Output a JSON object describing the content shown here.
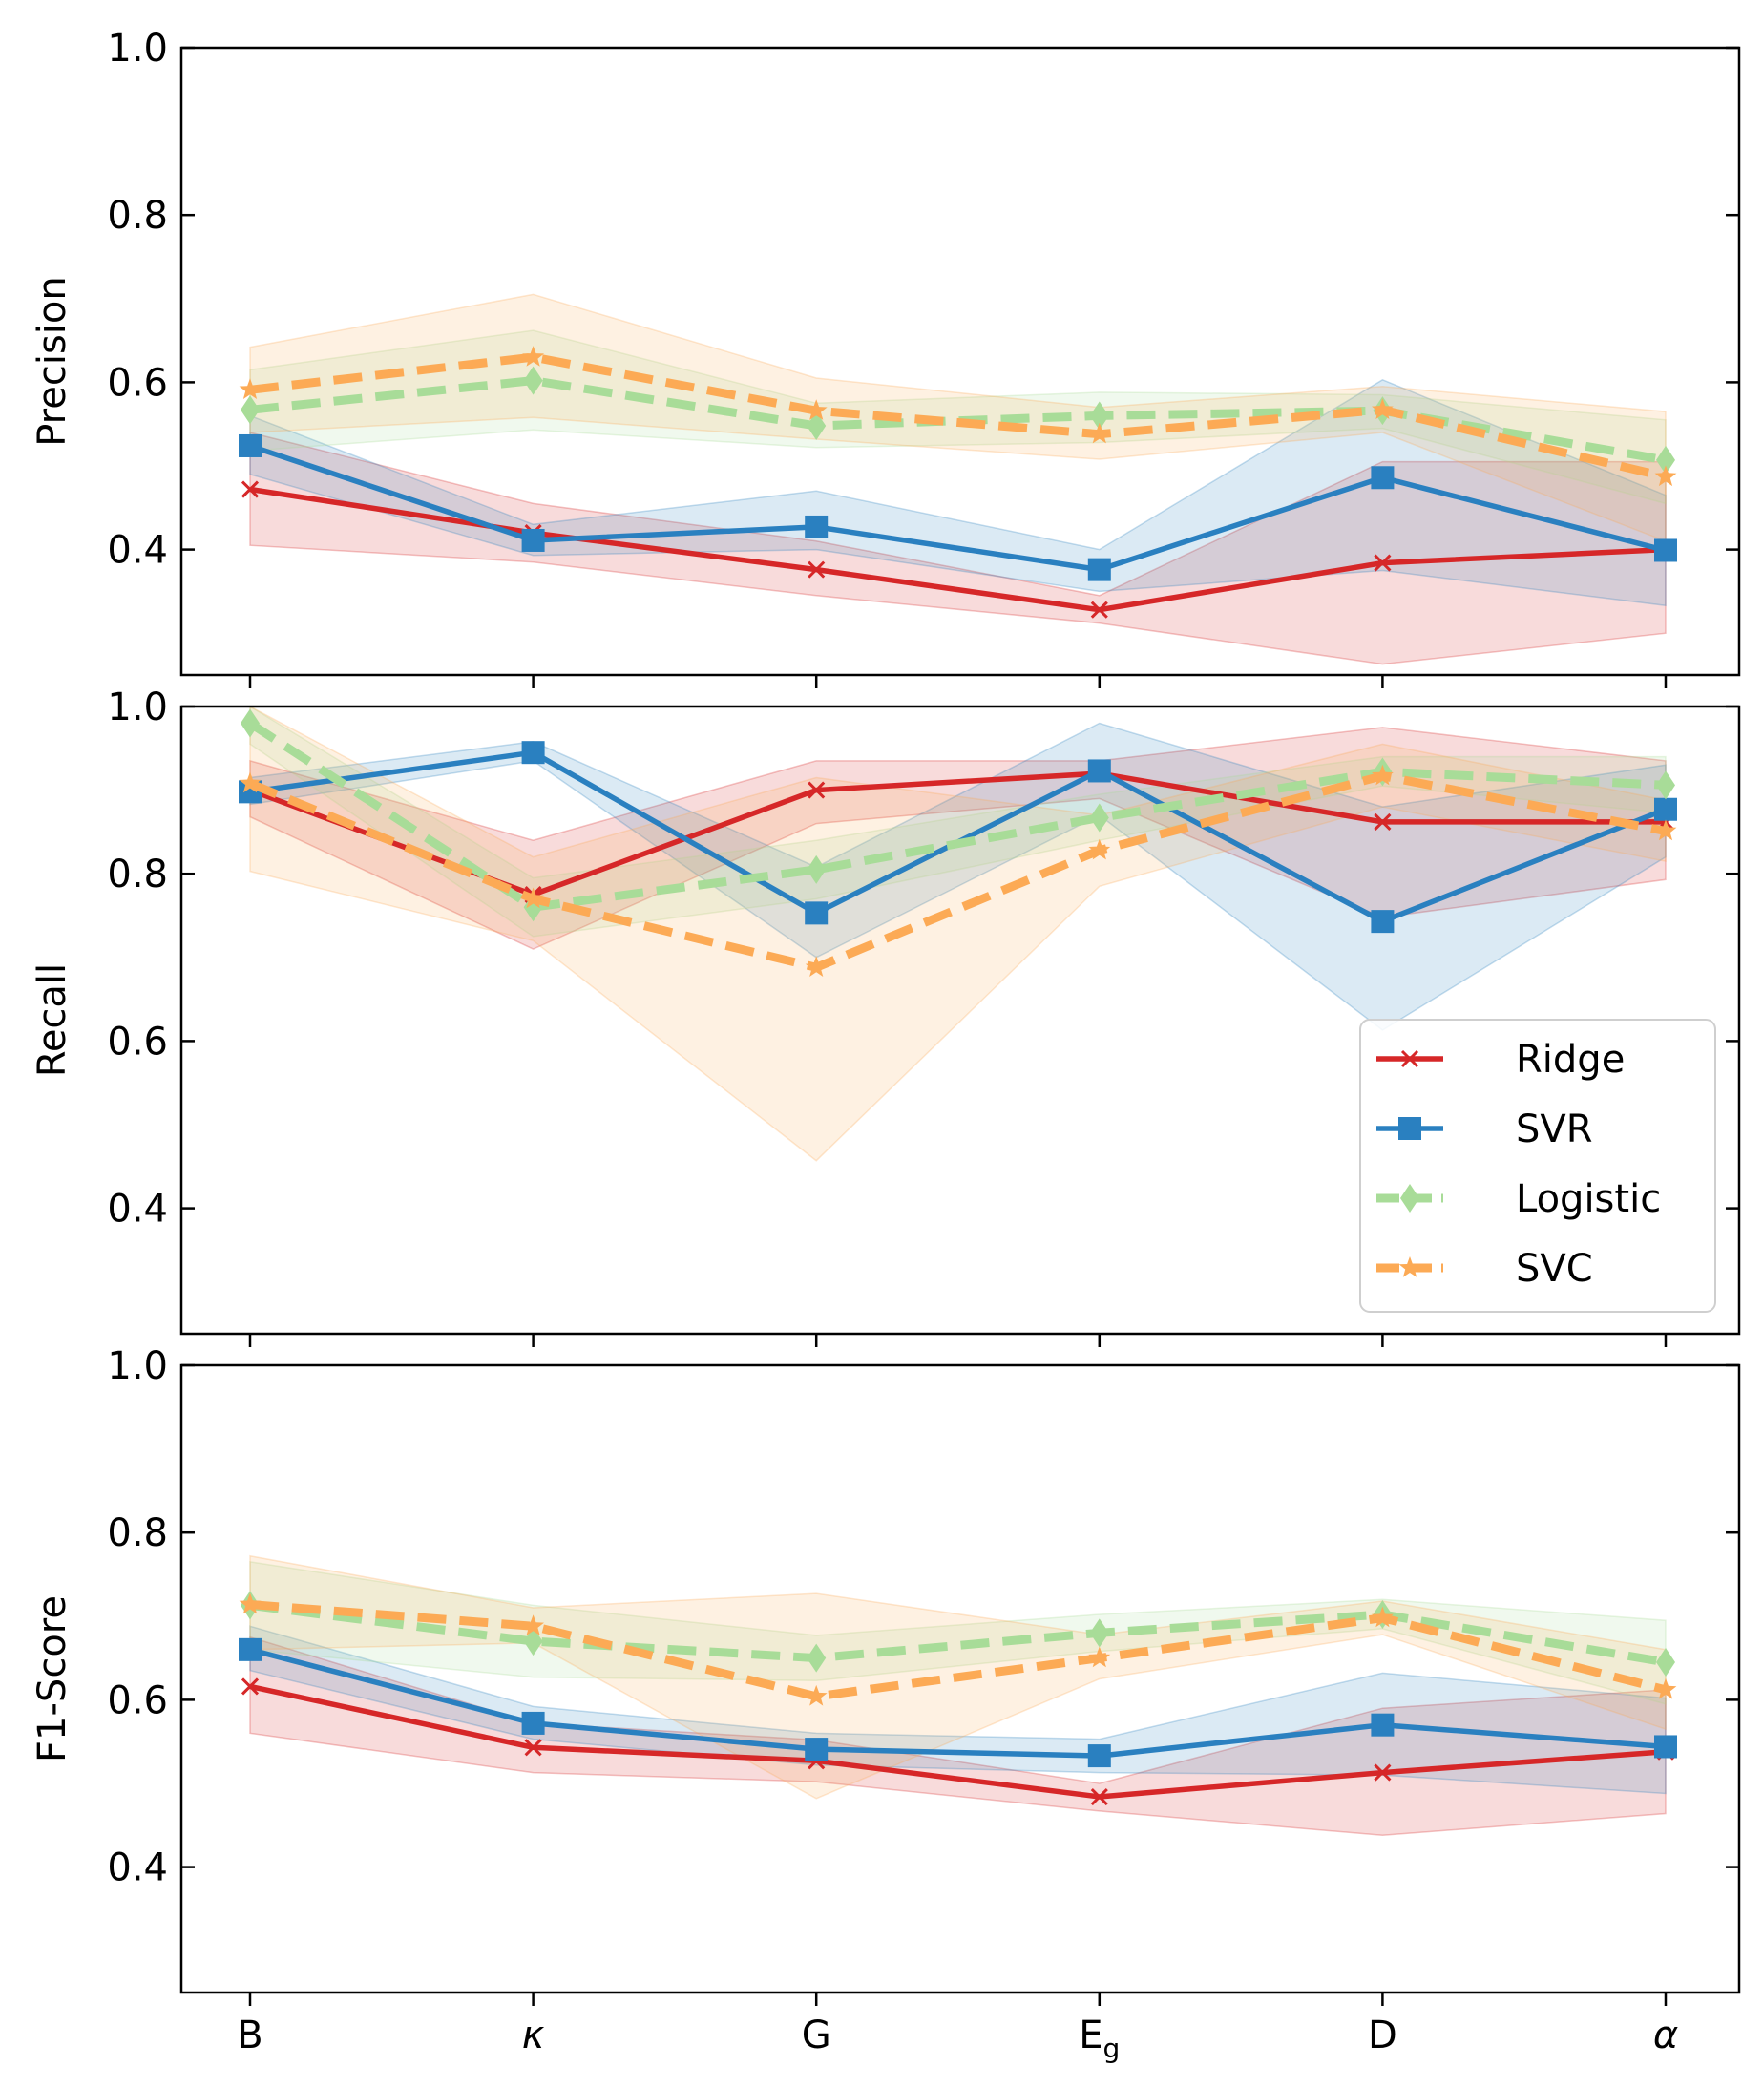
{
  "chart_data": {
    "type": "line",
    "x": [
      "B",
      "κ",
      "G",
      "E_g",
      "D",
      "α"
    ],
    "ylim": [
      0.25,
      1.0
    ],
    "yticks": [
      0.4,
      0.6,
      0.8,
      1.0
    ],
    "grid": false,
    "legend": {
      "panel": 1,
      "placement": "lower-right"
    },
    "series_styles": {
      "Ridge": {
        "color": "#d62728",
        "marker": "x",
        "dashed": false
      },
      "SVR": {
        "color": "#2a80c0",
        "marker": "square",
        "dashed": false
      },
      "Logistic": {
        "color": "#a8dc98",
        "marker": "diamond",
        "dashed": true
      },
      "SVC": {
        "color": "#fcaa55",
        "marker": "star",
        "dashed": true
      }
    },
    "panels": [
      {
        "ylabel": "Precision",
        "series": [
          {
            "name": "Ridge",
            "values": [
              0.472,
              0.42,
              0.376,
              0.328,
              0.384,
              0.4
            ],
            "lower": [
              0.405,
              0.385,
              0.345,
              0.312,
              0.263,
              0.3
            ],
            "upper": [
              0.54,
              0.455,
              0.41,
              0.345,
              0.505,
              0.505
            ]
          },
          {
            "name": "SVR",
            "values": [
              0.524,
              0.411,
              0.427,
              0.376,
              0.486,
              0.399
            ],
            "lower": [
              0.49,
              0.393,
              0.4,
              0.35,
              0.375,
              0.333
            ],
            "upper": [
              0.56,
              0.43,
              0.47,
              0.4,
              0.603,
              0.465
            ]
          },
          {
            "name": "Logistic",
            "values": [
              0.567,
              0.602,
              0.548,
              0.56,
              0.566,
              0.507
            ],
            "lower": [
              0.518,
              0.543,
              0.522,
              0.528,
              0.545,
              0.455
            ],
            "upper": [
              0.615,
              0.662,
              0.575,
              0.588,
              0.585,
              0.555
            ]
          },
          {
            "name": "SVC",
            "values": [
              0.591,
              0.63,
              0.566,
              0.538,
              0.567,
              0.487
            ],
            "lower": [
              0.54,
              0.558,
              0.532,
              0.508,
              0.54,
              0.41
            ],
            "upper": [
              0.642,
              0.705,
              0.605,
              0.57,
              0.595,
              0.565
            ]
          }
        ]
      },
      {
        "ylabel": "Recall",
        "series": [
          {
            "name": "Ridge",
            "values": [
              0.9,
              0.775,
              0.9,
              0.92,
              0.862,
              0.862
            ],
            "lower": [
              0.868,
              0.71,
              0.86,
              0.89,
              0.748,
              0.793
            ],
            "upper": [
              0.935,
              0.84,
              0.935,
              0.935,
              0.975,
              0.935
            ]
          },
          {
            "name": "SVR",
            "values": [
              0.898,
              0.945,
              0.753,
              0.923,
              0.743,
              0.877
            ],
            "lower": [
              0.883,
              0.935,
              0.7,
              0.87,
              0.613,
              0.82
            ],
            "upper": [
              0.915,
              0.958,
              0.808,
              0.98,
              0.88,
              0.93
            ]
          },
          {
            "name": "Logistic",
            "values": [
              0.98,
              0.76,
              0.805,
              0.867,
              0.922,
              0.906
            ],
            "lower": [
              0.955,
              0.725,
              0.77,
              0.84,
              0.905,
              0.873
            ],
            "upper": [
              1.0,
              0.795,
              0.84,
              0.895,
              0.94,
              0.94
            ]
          },
          {
            "name": "SVC",
            "values": [
              0.908,
              0.77,
              0.688,
              0.828,
              0.917,
              0.851
            ],
            "lower": [
              0.803,
              0.72,
              0.457,
              0.785,
              0.88,
              0.815
            ],
            "upper": [
              1.0,
              0.82,
              0.915,
              0.87,
              0.955,
              0.888
            ]
          }
        ]
      },
      {
        "ylabel": "F1-Score",
        "series": [
          {
            "name": "Ridge",
            "values": [
              0.616,
              0.543,
              0.527,
              0.484,
              0.513,
              0.538
            ],
            "lower": [
              0.56,
              0.513,
              0.502,
              0.467,
              0.438,
              0.464
            ],
            "upper": [
              0.675,
              0.572,
              0.552,
              0.5,
              0.59,
              0.612
            ]
          },
          {
            "name": "SVR",
            "values": [
              0.66,
              0.572,
              0.541,
              0.533,
              0.57,
              0.544
            ],
            "lower": [
              0.635,
              0.553,
              0.522,
              0.513,
              0.51,
              0.488
            ],
            "upper": [
              0.688,
              0.592,
              0.56,
              0.553,
              0.632,
              0.602
            ]
          },
          {
            "name": "Logistic",
            "values": [
              0.713,
              0.67,
              0.65,
              0.68,
              0.702,
              0.645
            ],
            "lower": [
              0.66,
              0.627,
              0.623,
              0.658,
              0.685,
              0.595
            ],
            "upper": [
              0.765,
              0.713,
              0.677,
              0.702,
              0.72,
              0.695
            ]
          },
          {
            "name": "SVC",
            "values": [
              0.714,
              0.688,
              0.604,
              0.65,
              0.698,
              0.612
            ],
            "lower": [
              0.66,
              0.668,
              0.482,
              0.625,
              0.678,
              0.565
            ],
            "upper": [
              0.772,
              0.71,
              0.727,
              0.678,
              0.718,
              0.66
            ]
          }
        ]
      }
    ]
  }
}
